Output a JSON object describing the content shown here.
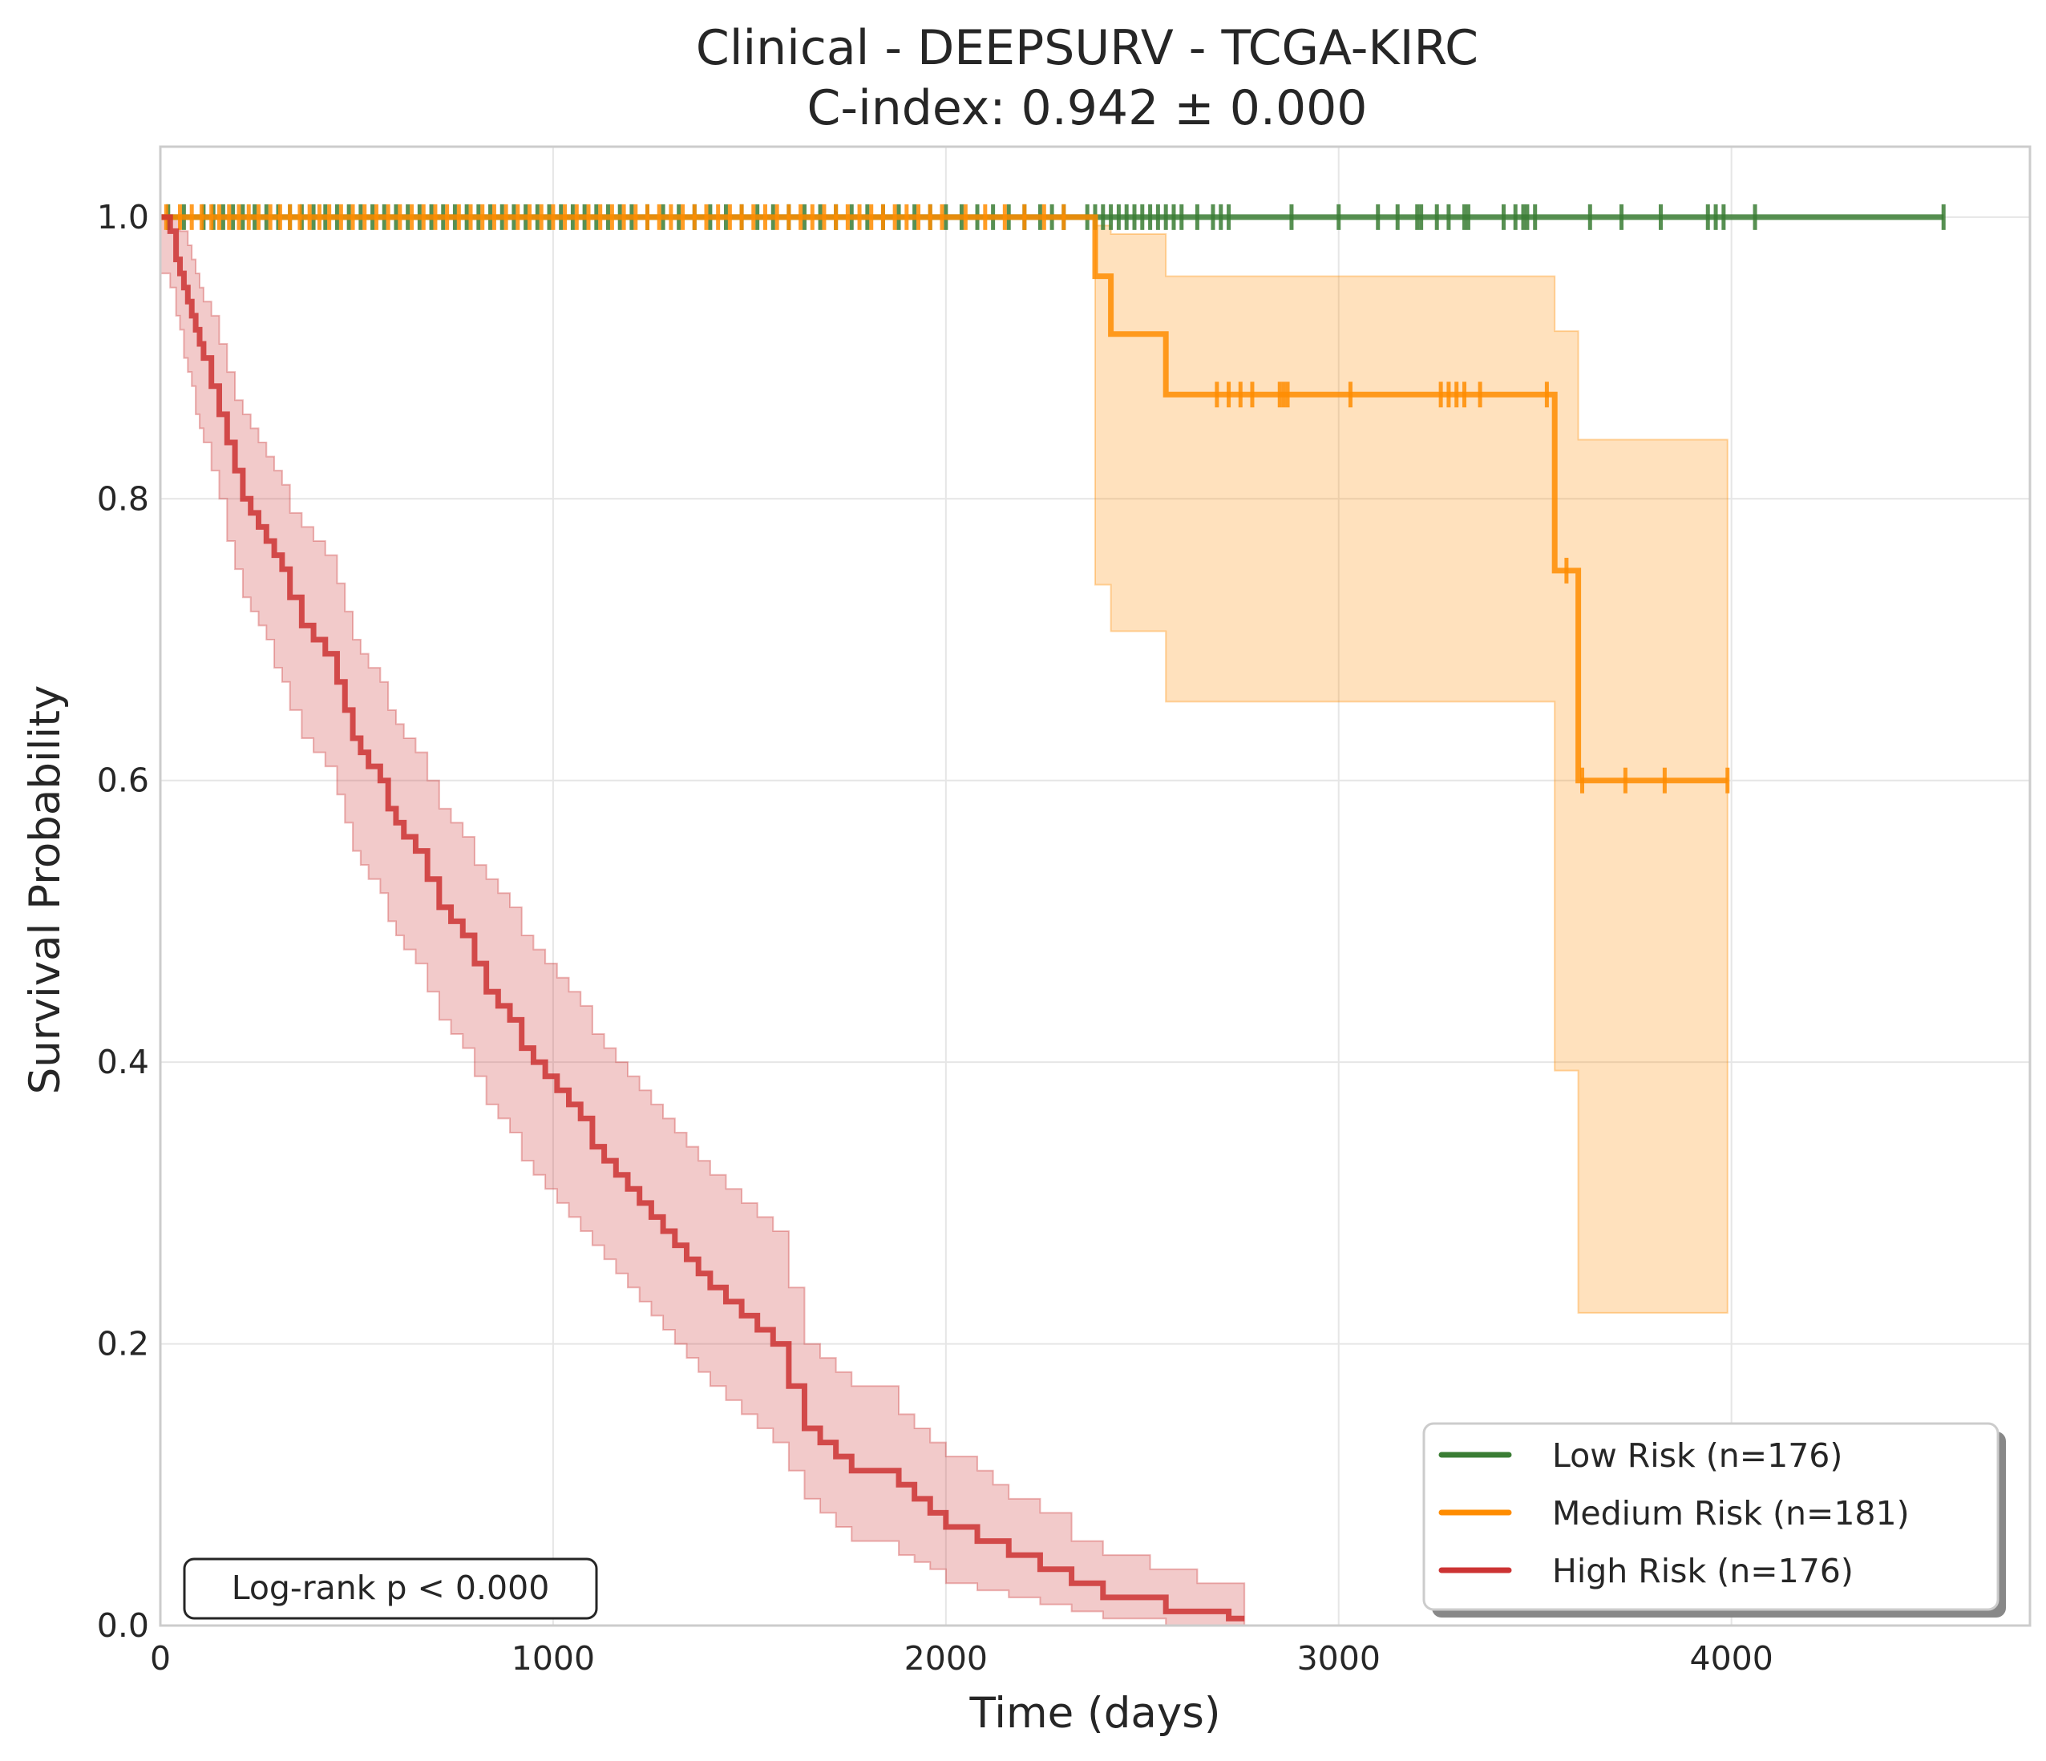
{
  "chart_data": {
    "type": "line",
    "title": "Clinical - DEEPSURV - TCGA-KIRC",
    "subtitle": "C-index: 0.942 ± 0.000",
    "xlabel": "Time (days)",
    "ylabel": "Survival Probability",
    "xlim": [
      0,
      4760
    ],
    "ylim": [
      0,
      1.05
    ],
    "xticks": [
      0,
      1000,
      2000,
      3000,
      4000
    ],
    "xtick_labels": [
      "0",
      "1000",
      "2000",
      "3000",
      "4000"
    ],
    "yticks": [
      0.0,
      0.2,
      0.4,
      0.6,
      0.8,
      1.0
    ],
    "ytick_labels": [
      "0.0",
      "0.2",
      "0.4",
      "0.6",
      "0.8",
      "1.0"
    ],
    "grid": true,
    "legend_position": "bottom-right",
    "annotation": "Log-rank p < 0.000",
    "series": [
      {
        "name": "Low Risk (n=176)",
        "color": "#3a7d34",
        "x": [
          0,
          4540
        ],
        "y": [
          1.0,
          1.0
        ],
        "ci_lower": [],
        "ci_upper": [],
        "censor_x": [
          20,
          60,
          110,
          135,
          160,
          185,
          210,
          240,
          270,
          300,
          330,
          360,
          390,
          420,
          450,
          480,
          510,
          540,
          570,
          600,
          630,
          660,
          690,
          720,
          750,
          780,
          810,
          840,
          870,
          900,
          930,
          960,
          990,
          1020,
          1050,
          1080,
          1110,
          1140,
          1170,
          1200,
          1240,
          1280,
          1320,
          1360,
          1400,
          1440,
          1480,
          1520,
          1560,
          1600,
          1640,
          1680,
          1720,
          1760,
          1800,
          1840,
          1880,
          1920,
          1960,
          2000,
          2040,
          2080,
          2120,
          2160,
          2200,
          2240,
          2270,
          2300,
          2360,
          2380,
          2400,
          2420,
          2440,
          2460,
          2480,
          2500,
          2520,
          2540,
          2560,
          2580,
          2600,
          2640,
          2680,
          2700,
          2720,
          2880,
          3000,
          3100,
          3150,
          3200,
          3210,
          3250,
          3280,
          3320,
          3330,
          3420,
          3450,
          3470,
          3480,
          3500,
          3640,
          3720,
          3820,
          3940,
          3960,
          3980,
          4060,
          4540
        ]
      },
      {
        "name": "Medium Risk (n=181)",
        "color": "#ff8c00",
        "x": [
          0,
          2380,
          2380,
          2420,
          2420,
          2560,
          2560,
          3550,
          3550,
          3610,
          3610,
          3990
        ],
        "y": [
          1.0,
          1.0,
          0.958,
          0.958,
          0.917,
          0.917,
          0.874,
          0.874,
          0.749,
          0.749,
          0.6,
          0.6
        ],
        "ci_x": [
          2380,
          2420,
          2560,
          3550,
          3610,
          3990
        ],
        "ci_lower": [
          0.739,
          0.706,
          0.656,
          0.394,
          0.222,
          0.222
        ],
        "ci_upper": [
          0.994,
          0.988,
          0.958,
          0.919,
          0.842,
          0.842
        ],
        "censor_x": [
          15,
          50,
          80,
          105,
          130,
          150,
          175,
          200,
          225,
          250,
          280,
          305,
          330,
          355,
          380,
          405,
          430,
          460,
          490,
          520,
          550,
          580,
          610,
          640,
          670,
          700,
          730,
          760,
          790,
          820,
          850,
          880,
          910,
          940,
          970,
          1000,
          1030,
          1060,
          1090,
          1120,
          1150,
          1180,
          1210,
          1240,
          1270,
          1300,
          1330,
          1360,
          1390,
          1420,
          1450,
          1480,
          1510,
          1540,
          1570,
          1600,
          1630,
          1660,
          1690,
          1720,
          1750,
          1780,
          1810,
          1840,
          1870,
          1900,
          1930,
          1960,
          1990,
          2050,
          2100,
          2150,
          2200,
          2250,
          2300,
          2690,
          2720,
          2750,
          2780,
          2850,
          2860,
          2870,
          3030,
          3260,
          3280,
          3300,
          3320,
          3360,
          3530,
          3580,
          3620,
          3730,
          3830,
          3990
        ],
        "censor_y": [
          1.0,
          1.0,
          1.0,
          1.0,
          1.0,
          1.0,
          1.0,
          1.0,
          1.0,
          1.0,
          1.0,
          1.0,
          1.0,
          1.0,
          1.0,
          1.0,
          1.0,
          1.0,
          1.0,
          1.0,
          1.0,
          1.0,
          1.0,
          1.0,
          1.0,
          1.0,
          1.0,
          1.0,
          1.0,
          1.0,
          1.0,
          1.0,
          1.0,
          1.0,
          1.0,
          1.0,
          1.0,
          1.0,
          1.0,
          1.0,
          1.0,
          1.0,
          1.0,
          1.0,
          1.0,
          1.0,
          1.0,
          1.0,
          1.0,
          1.0,
          1.0,
          1.0,
          1.0,
          1.0,
          1.0,
          1.0,
          1.0,
          1.0,
          1.0,
          1.0,
          1.0,
          1.0,
          1.0,
          1.0,
          1.0,
          1.0,
          1.0,
          1.0,
          1.0,
          1.0,
          1.0,
          1.0,
          1.0,
          1.0,
          1.0,
          0.874,
          0.874,
          0.874,
          0.874,
          0.874,
          0.874,
          0.874,
          0.874,
          0.874,
          0.874,
          0.874,
          0.874,
          0.874,
          0.874,
          0.749,
          0.6,
          0.6,
          0.6,
          0.6
        ]
      },
      {
        "name": "High Risk (n=176)",
        "color": "#cc3333",
        "x": [
          0,
          25,
          40,
          50,
          60,
          70,
          80,
          90,
          100,
          110,
          130,
          150,
          170,
          190,
          210,
          230,
          250,
          270,
          290,
          310,
          330,
          360,
          390,
          420,
          450,
          470,
          490,
          510,
          530,
          560,
          580,
          600,
          620,
          650,
          680,
          710,
          740,
          770,
          800,
          830,
          860,
          890,
          920,
          950,
          980,
          1010,
          1040,
          1070,
          1100,
          1130,
          1160,
          1190,
          1220,
          1250,
          1280,
          1310,
          1340,
          1370,
          1400,
          1440,
          1480,
          1520,
          1560,
          1600,
          1640,
          1680,
          1720,
          1760,
          1800,
          1840,
          1880,
          1920,
          1960,
          2000,
          2040,
          2080,
          2120,
          2160,
          2200,
          2240,
          2280,
          2320,
          2360,
          2400,
          2440,
          2480,
          2520,
          2560,
          2600,
          2640,
          2680,
          2720,
          2760
        ],
        "y": [
          1.0,
          0.99,
          0.97,
          0.96,
          0.95,
          0.94,
          0.93,
          0.92,
          0.91,
          0.9,
          0.88,
          0.86,
          0.84,
          0.82,
          0.8,
          0.79,
          0.78,
          0.77,
          0.76,
          0.75,
          0.73,
          0.71,
          0.7,
          0.69,
          0.67,
          0.65,
          0.63,
          0.62,
          0.61,
          0.6,
          0.58,
          0.57,
          0.56,
          0.55,
          0.53,
          0.51,
          0.5,
          0.49,
          0.47,
          0.45,
          0.44,
          0.43,
          0.41,
          0.4,
          0.39,
          0.38,
          0.37,
          0.36,
          0.34,
          0.33,
          0.32,
          0.31,
          0.3,
          0.29,
          0.28,
          0.27,
          0.26,
          0.25,
          0.24,
          0.23,
          0.22,
          0.21,
          0.2,
          0.17,
          0.14,
          0.13,
          0.12,
          0.11,
          0.11,
          0.11,
          0.1,
          0.09,
          0.08,
          0.07,
          0.07,
          0.06,
          0.06,
          0.05,
          0.05,
          0.04,
          0.04,
          0.03,
          0.03,
          0.02,
          0.02,
          0.02,
          0.02,
          0.01,
          0.01,
          0.01,
          0.01,
          0.005,
          0.005
        ],
        "ci_lower": [
          0.96,
          0.95,
          0.93,
          0.92,
          0.9,
          0.89,
          0.88,
          0.86,
          0.85,
          0.84,
          0.82,
          0.8,
          0.77,
          0.75,
          0.73,
          0.72,
          0.71,
          0.7,
          0.68,
          0.67,
          0.65,
          0.63,
          0.62,
          0.61,
          0.59,
          0.57,
          0.55,
          0.54,
          0.53,
          0.52,
          0.5,
          0.49,
          0.48,
          0.47,
          0.45,
          0.43,
          0.42,
          0.41,
          0.39,
          0.37,
          0.36,
          0.35,
          0.33,
          0.32,
          0.31,
          0.3,
          0.29,
          0.28,
          0.27,
          0.26,
          0.25,
          0.24,
          0.23,
          0.22,
          0.21,
          0.2,
          0.19,
          0.18,
          0.17,
          0.16,
          0.15,
          0.14,
          0.13,
          0.11,
          0.09,
          0.08,
          0.07,
          0.06,
          0.06,
          0.06,
          0.05,
          0.045,
          0.04,
          0.03,
          0.03,
          0.025,
          0.025,
          0.02,
          0.02,
          0.015,
          0.015,
          0.01,
          0.01,
          0.005,
          0.005,
          0.005,
          0.005,
          0.0,
          0.0,
          0.0,
          0.0,
          0.0,
          0.0
        ],
        "ci_upper": [
          1.0,
          1.0,
          1.0,
          0.99,
          0.99,
          0.98,
          0.97,
          0.96,
          0.95,
          0.94,
          0.93,
          0.91,
          0.89,
          0.87,
          0.86,
          0.85,
          0.84,
          0.83,
          0.82,
          0.81,
          0.79,
          0.78,
          0.77,
          0.76,
          0.74,
          0.72,
          0.7,
          0.69,
          0.68,
          0.67,
          0.65,
          0.64,
          0.63,
          0.62,
          0.6,
          0.58,
          0.57,
          0.56,
          0.54,
          0.53,
          0.52,
          0.51,
          0.49,
          0.48,
          0.47,
          0.46,
          0.45,
          0.44,
          0.42,
          0.41,
          0.4,
          0.39,
          0.38,
          0.37,
          0.36,
          0.35,
          0.34,
          0.33,
          0.32,
          0.31,
          0.3,
          0.29,
          0.28,
          0.24,
          0.2,
          0.19,
          0.18,
          0.17,
          0.17,
          0.17,
          0.15,
          0.14,
          0.13,
          0.12,
          0.12,
          0.11,
          0.1,
          0.09,
          0.09,
          0.08,
          0.08,
          0.06,
          0.06,
          0.05,
          0.05,
          0.05,
          0.04,
          0.04,
          0.04,
          0.03,
          0.03,
          0.03,
          0.03
        ],
        "censor_x": [],
        "censor_y": []
      }
    ]
  }
}
